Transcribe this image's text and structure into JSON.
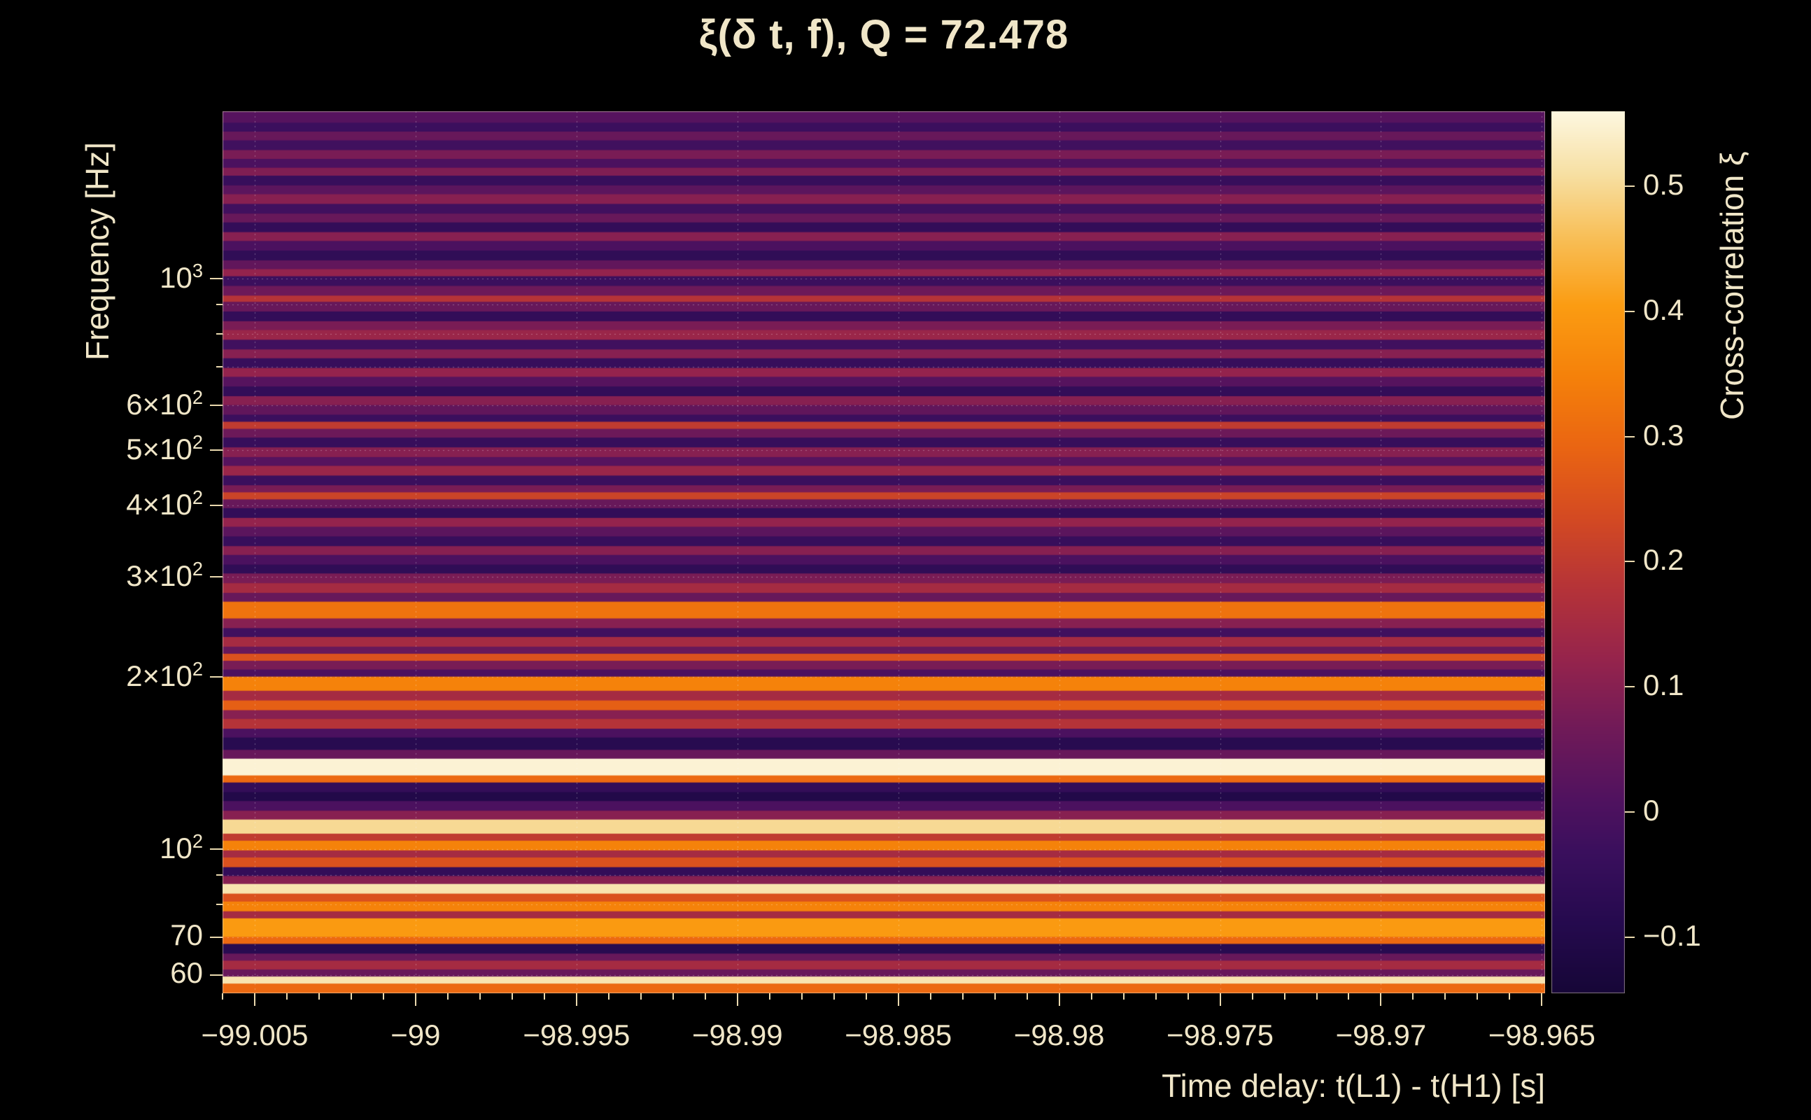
{
  "colors": {
    "background": "#000000",
    "text": "#f0e6c8",
    "tick": "#ead9ae",
    "grid": "rgba(255,255,255,0.32)",
    "frame": "rgba(240,230,200,0.5)"
  },
  "chart_data": {
    "type": "heatmap",
    "title": "ξ(δ t, f), Q = 72.478",
    "xlabel": "Time delay: t(L1) - t(H1) [s]",
    "ylabel": "Frequency [Hz]",
    "colorbar_label": "Cross-correlation ξ",
    "x_range": [
      -99.006,
      -98.9649
    ],
    "y_range_hz": [
      55.8,
      1965
    ],
    "y_scale": "log",
    "x_tick_step_minor": 0.001,
    "x_ticks": [
      {
        "v": -99.005,
        "label": "−99.005"
      },
      {
        "v": -99.0,
        "label": "−99"
      },
      {
        "v": -98.995,
        "label": "−98.995"
      },
      {
        "v": -98.99,
        "label": "−98.99"
      },
      {
        "v": -98.985,
        "label": "−98.985"
      },
      {
        "v": -98.98,
        "label": "−98.98"
      },
      {
        "v": -98.975,
        "label": "−98.975"
      },
      {
        "v": -98.97,
        "label": "−98.97"
      },
      {
        "v": -98.965,
        "label": "−98.965"
      }
    ],
    "y_ticks": [
      {
        "f": 1000,
        "label": "10^3"
      },
      {
        "f": 600,
        "label": "6×10^2"
      },
      {
        "f": 500,
        "label": "5×10^2"
      },
      {
        "f": 400,
        "label": "4×10^2"
      },
      {
        "f": 300,
        "label": "3×10^2"
      },
      {
        "f": 200,
        "label": "2×10^2"
      },
      {
        "f": 100,
        "label": "10^2"
      },
      {
        "f": 70,
        "label": "70"
      },
      {
        "f": 60,
        "label": "60"
      }
    ],
    "y_grid_hz": [
      60,
      70,
      80,
      90,
      100,
      200,
      300,
      400,
      500,
      600,
      700,
      800,
      900,
      1000
    ],
    "colorbar": {
      "min": -0.145,
      "max": 0.56,
      "ticks": [
        {
          "v": 0.5,
          "label": "0.5"
        },
        {
          "v": 0.4,
          "label": "0.4"
        },
        {
          "v": 0.3,
          "label": "0.3"
        },
        {
          "v": 0.2,
          "label": "0.2"
        },
        {
          "v": 0.1,
          "label": "0.1"
        },
        {
          "v": 0.0,
          "label": "0"
        },
        {
          "v": -0.1,
          "label": "−0.1"
        }
      ]
    },
    "colormap_stops": [
      [
        0.0,
        "#160637"
      ],
      [
        0.08,
        "#250a4e"
      ],
      [
        0.16,
        "#3a0f5d"
      ],
      [
        0.22,
        "#50125f"
      ],
      [
        0.3,
        "#701a58"
      ],
      [
        0.38,
        "#96244c"
      ],
      [
        0.46,
        "#b53338"
      ],
      [
        0.54,
        "#d44a22"
      ],
      [
        0.62,
        "#ea6512"
      ],
      [
        0.7,
        "#f5810a"
      ],
      [
        0.78,
        "#fb9c12"
      ],
      [
        0.86,
        "#f8c05a"
      ],
      [
        0.93,
        "#f7e0a4"
      ],
      [
        1.0,
        "#fdf7e0"
      ]
    ],
    "bands": [
      [
        0.0,
        0.013,
        0.02
      ],
      [
        0.013,
        0.023,
        -0.03
      ],
      [
        0.023,
        0.033,
        0.05
      ],
      [
        0.033,
        0.044,
        -0.02
      ],
      [
        0.044,
        0.054,
        0.08
      ],
      [
        0.054,
        0.064,
        0.0
      ],
      [
        0.064,
        0.073,
        0.09
      ],
      [
        0.073,
        0.084,
        -0.04
      ],
      [
        0.084,
        0.094,
        0.03
      ],
      [
        0.094,
        0.105,
        0.1
      ],
      [
        0.105,
        0.116,
        -0.02
      ],
      [
        0.116,
        0.126,
        0.05
      ],
      [
        0.126,
        0.137,
        -0.05
      ],
      [
        0.137,
        0.147,
        0.1
      ],
      [
        0.147,
        0.158,
        0.0
      ],
      [
        0.158,
        0.169,
        -0.06
      ],
      [
        0.169,
        0.179,
        0.04
      ],
      [
        0.179,
        0.187,
        0.12
      ],
      [
        0.187,
        0.198,
        -0.03
      ],
      [
        0.198,
        0.209,
        0.06
      ],
      [
        0.209,
        0.216,
        0.18
      ],
      [
        0.216,
        0.227,
        0.05
      ],
      [
        0.227,
        0.238,
        -0.05
      ],
      [
        0.238,
        0.248,
        0.08
      ],
      [
        0.248,
        0.259,
        0.13
      ],
      [
        0.259,
        0.27,
        -0.02
      ],
      [
        0.27,
        0.28,
        0.1
      ],
      [
        0.28,
        0.291,
        -0.04
      ],
      [
        0.291,
        0.301,
        0.12
      ],
      [
        0.301,
        0.312,
        0.02
      ],
      [
        0.312,
        0.323,
        -0.05
      ],
      [
        0.323,
        0.333,
        0.1
      ],
      [
        0.333,
        0.344,
        0.04
      ],
      [
        0.344,
        0.352,
        -0.03
      ],
      [
        0.352,
        0.36,
        0.2
      ],
      [
        0.36,
        0.37,
        0.06
      ],
      [
        0.37,
        0.381,
        -0.04
      ],
      [
        0.381,
        0.392,
        0.1
      ],
      [
        0.392,
        0.402,
        0.02
      ],
      [
        0.402,
        0.413,
        0.13
      ],
      [
        0.413,
        0.424,
        -0.03
      ],
      [
        0.424,
        0.432,
        0.08
      ],
      [
        0.432,
        0.44,
        0.22
      ],
      [
        0.44,
        0.45,
        0.05
      ],
      [
        0.45,
        0.461,
        -0.05
      ],
      [
        0.461,
        0.471,
        0.12
      ],
      [
        0.471,
        0.482,
        0.03
      ],
      [
        0.482,
        0.493,
        -0.04
      ],
      [
        0.493,
        0.503,
        0.1
      ],
      [
        0.503,
        0.514,
        0.0
      ],
      [
        0.514,
        0.524,
        -0.06
      ],
      [
        0.524,
        0.535,
        0.08
      ],
      [
        0.535,
        0.546,
        0.15
      ],
      [
        0.546,
        0.556,
        0.05
      ],
      [
        0.556,
        0.575,
        0.32
      ],
      [
        0.575,
        0.586,
        0.1
      ],
      [
        0.586,
        0.596,
        -0.02
      ],
      [
        0.596,
        0.607,
        0.15
      ],
      [
        0.607,
        0.615,
        0.05
      ],
      [
        0.615,
        0.623,
        0.25
      ],
      [
        0.623,
        0.633,
        0.08
      ],
      [
        0.633,
        0.641,
        0.0
      ],
      [
        0.641,
        0.657,
        0.35
      ],
      [
        0.657,
        0.668,
        0.15
      ],
      [
        0.668,
        0.679,
        0.28
      ],
      [
        0.679,
        0.689,
        0.1
      ],
      [
        0.689,
        0.7,
        0.18
      ],
      [
        0.7,
        0.71,
        0.0
      ],
      [
        0.71,
        0.724,
        -0.08
      ],
      [
        0.724,
        0.734,
        0.05
      ],
      [
        0.734,
        0.753,
        0.55
      ],
      [
        0.753,
        0.761,
        0.3
      ],
      [
        0.761,
        0.772,
        -0.05
      ],
      [
        0.772,
        0.782,
        -0.1
      ],
      [
        0.782,
        0.793,
        0.0
      ],
      [
        0.793,
        0.803,
        0.1
      ],
      [
        0.803,
        0.819,
        0.5
      ],
      [
        0.819,
        0.827,
        0.2
      ],
      [
        0.827,
        0.838,
        0.35
      ],
      [
        0.838,
        0.846,
        0.15
      ],
      [
        0.846,
        0.857,
        0.25
      ],
      [
        0.857,
        0.867,
        -0.05
      ],
      [
        0.867,
        0.876,
        0.1
      ],
      [
        0.876,
        0.887,
        0.52
      ],
      [
        0.887,
        0.896,
        0.25
      ],
      [
        0.896,
        0.907,
        0.35
      ],
      [
        0.907,
        0.915,
        0.15
      ],
      [
        0.915,
        0.936,
        0.4
      ],
      [
        0.936,
        0.944,
        0.3
      ],
      [
        0.944,
        0.955,
        -0.08
      ],
      [
        0.955,
        0.963,
        0.05
      ],
      [
        0.963,
        0.973,
        0.15
      ],
      [
        0.973,
        0.981,
        0.05
      ],
      [
        0.981,
        0.989,
        0.52
      ],
      [
        0.989,
        1.0,
        0.3
      ]
    ]
  }
}
